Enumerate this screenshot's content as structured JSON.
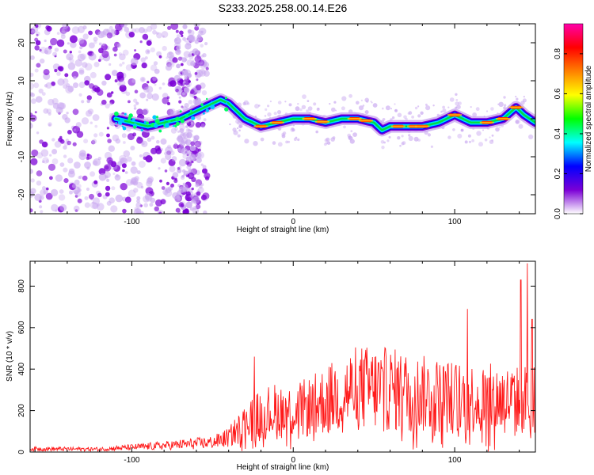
{
  "title": "S233.2025.258.00.14.E26",
  "chart_data": [
    {
      "type": "heatmap",
      "title": "S233.2025.258.00.14.E26",
      "xlabel": "Height of straight line (km)",
      "ylabel": "Frequency (Hz)",
      "xlim": [
        -163,
        150
      ],
      "ylim": [
        -25,
        25
      ],
      "xticks": [
        -100,
        0,
        100
      ],
      "yticks": [
        -20,
        -10,
        0,
        10,
        20
      ],
      "colorbar": {
        "label": "Normalized spectral amplitude",
        "range": [
          0.0,
          0.95
        ],
        "ticks": [
          0.0,
          0.2,
          0.4,
          0.6,
          0.8
        ],
        "tick_labels": [
          "0.0",
          "0.2",
          "0.4",
          "0.6",
          "0.8"
        ],
        "colormap": [
          "#ffffff",
          "#7b00d6",
          "#0000ff",
          "#00ffff",
          "#00ff00",
          "#ffff00",
          "#ff8000",
          "#ff0000",
          "#ff00aa"
        ]
      },
      "ridge": {
        "x": [
          -110,
          -100,
          -90,
          -80,
          -70,
          -60,
          -50,
          -45,
          -40,
          -35,
          -30,
          -25,
          -20,
          -10,
          0,
          10,
          20,
          30,
          40,
          50,
          55,
          60,
          70,
          80,
          90,
          100,
          110,
          120,
          130,
          138,
          143,
          150
        ],
        "y": [
          0,
          -1,
          -2,
          -1,
          0,
          2,
          4,
          5,
          4,
          2,
          0,
          -1,
          -2,
          -1,
          0,
          0,
          -1,
          0,
          0,
          -1,
          -3,
          -2,
          -2,
          -2,
          -1,
          1,
          -1,
          -1,
          0,
          3,
          1,
          -1
        ]
      }
    },
    {
      "type": "line",
      "xlabel": "Height of straight line (km)",
      "ylabel": "SNR (10 * v/v)",
      "xlim": [
        -163,
        150
      ],
      "ylim": [
        0,
        920
      ],
      "xticks": [
        -100,
        0,
        100
      ],
      "yticks": [
        0,
        200,
        400,
        600,
        800
      ],
      "series": [
        {
          "name": "SNR",
          "color": "#ff0000",
          "envelope_x": [
            -163,
            -120,
            -80,
            -50,
            -40,
            -30,
            -20,
            -10,
            0,
            10,
            20,
            40,
            60,
            80,
            100,
            120,
            140,
            150
          ],
          "envelope_y": [
            20,
            18,
            40,
            60,
            90,
            180,
            240,
            260,
            250,
            280,
            320,
            400,
            390,
            360,
            340,
            330,
            320,
            340
          ],
          "peaks": [
            {
              "x": -24,
              "y": 460
            },
            {
              "x": 145,
              "y": 910
            },
            {
              "x": 141,
              "y": 830
            },
            {
              "x": 108,
              "y": 690
            },
            {
              "x": 148,
              "y": 640
            }
          ]
        }
      ]
    }
  ]
}
